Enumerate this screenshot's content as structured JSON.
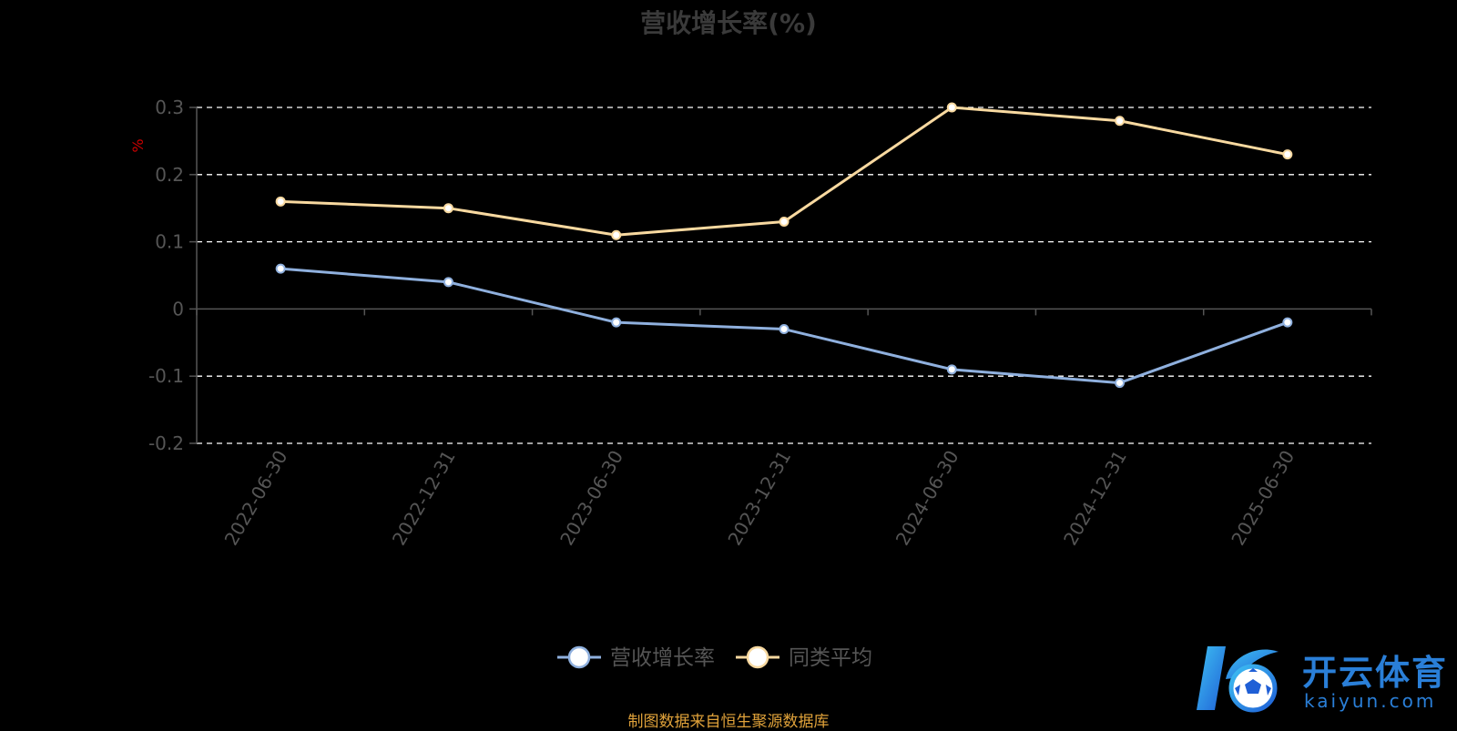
{
  "chart_data": {
    "type": "line",
    "title": "营收增长率(%)",
    "ylabel": "%",
    "xlabel": "",
    "categories": [
      "2022-06-30",
      "2022-12-31",
      "2023-06-30",
      "2023-12-31",
      "2024-06-30",
      "2024-12-31",
      "2025-06-30"
    ],
    "ylim": [
      -0.2,
      0.3
    ],
    "yticks": [
      "0.3",
      "0.2",
      "0.1",
      "0",
      "-0.1",
      "-0.2"
    ],
    "ytick_values": [
      0.3,
      0.2,
      0.1,
      0,
      -0.1,
      -0.2
    ],
    "grid": true,
    "legend_position": "bottom-center",
    "series": [
      {
        "name": "营收增长率",
        "color": "#8fb0de",
        "values": [
          0.06,
          0.04,
          -0.02,
          -0.03,
          -0.09,
          -0.11,
          -0.02
        ]
      },
      {
        "name": "同类平均",
        "color": "#f8d9a0",
        "values": [
          0.16,
          0.15,
          0.11,
          0.13,
          0.3,
          0.28,
          0.23
        ]
      }
    ]
  },
  "footer": {
    "source_text": "制图数据来自恒生聚源数据库"
  },
  "watermark": {
    "brand": "开云体育",
    "sub": "kaiyun.com",
    "icon": "soccer-ball-logo"
  },
  "colors": {
    "background": "#000000",
    "axis": "#555555",
    "tick_text": "#555555",
    "grid": "#ffffff",
    "ylabel": "#cc0000",
    "legend_text": "#555555",
    "source_text": "#e0a23a"
  }
}
